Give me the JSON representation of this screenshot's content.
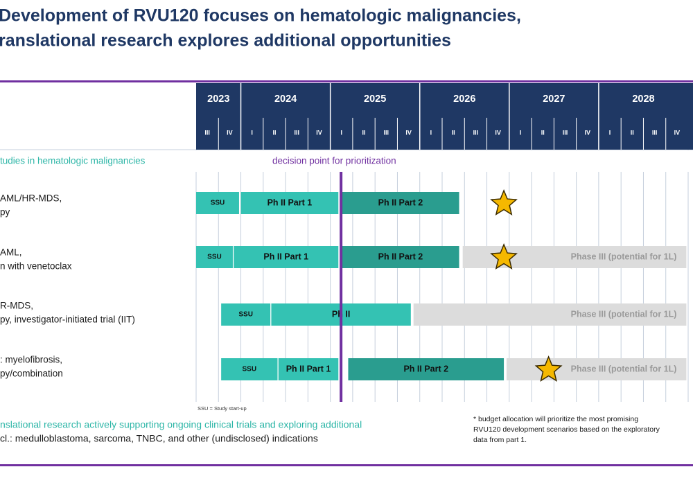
{
  "header": {
    "title": [
      "Development of RVU120 focuses on hematologic malignancies,",
      "ranslational research explores additional opportunities"
    ]
  },
  "timeline": {
    "years": [
      {
        "label": "2023",
        "quarters": [
          "III",
          "IV"
        ]
      },
      {
        "label": "2024",
        "quarters": [
          "I",
          "II",
          "III",
          "IV"
        ]
      },
      {
        "label": "2025",
        "quarters": [
          "I",
          "II",
          "III",
          "IV"
        ]
      },
      {
        "label": "2026",
        "quarters": [
          "I",
          "II",
          "III",
          "IV"
        ]
      },
      {
        "label": "2027",
        "quarters": [
          "I",
          "II",
          "III",
          "IV"
        ]
      },
      {
        "label": "2028",
        "quarters": [
          "I",
          "II",
          "III",
          "IV"
        ]
      }
    ]
  },
  "section": {
    "title": "tudies in hematologic malignancies",
    "decision_label": "decision point for prioritization",
    "decision_time": 2025.12
  },
  "rows": [
    {
      "label": [
        "AML/HR-MDS,",
        "py"
      ],
      "bars": [
        {
          "label": "SSU",
          "kind": "setup",
          "start": 2023.5,
          "end": 2023.98
        },
        {
          "label": "Ph II Part 1",
          "kind": "setup",
          "start": 2024.0,
          "end": 2025.09
        },
        {
          "label": "Ph II Part 2",
          "kind": "main",
          "start": 2025.13,
          "end": 2026.44
        }
      ],
      "star": 2026.94
    },
    {
      "label": [
        "AML,",
        "n with venetoclax"
      ],
      "bars": [
        {
          "label": "SSU",
          "kind": "setup",
          "start": 2023.5,
          "end": 2023.91
        },
        {
          "label": "Ph II Part 1",
          "kind": "setup",
          "start": 2023.92,
          "end": 2025.09
        },
        {
          "label": "Ph II Part 2",
          "kind": "main",
          "start": 2025.13,
          "end": 2026.44
        },
        {
          "label": "Phase III (potential for 1L)",
          "kind": "potential",
          "start": 2026.48,
          "end": 2028.98
        }
      ],
      "star": 2026.94
    },
    {
      "label": [
        "R-MDS,",
        "py, investigator-initiated trial (IIT)"
      ],
      "bars": [
        {
          "label": "SSU",
          "kind": "setup",
          "start": 2023.78,
          "end": 2024.33
        },
        {
          "label": "Ph II",
          "kind": "setup",
          "start": 2024.34,
          "end": 2025.9
        },
        {
          "label": "Phase III (potential for 1L)",
          "kind": "potential",
          "start": 2025.93,
          "end": 2028.98
        }
      ],
      "star": null
    },
    {
      "label": [
        ": myelofibrosis,",
        "py/combination"
      ],
      "bars": [
        {
          "label": "SSU",
          "kind": "setup",
          "start": 2023.78,
          "end": 2024.41
        },
        {
          "label": "Ph II Part 1",
          "kind": "setup",
          "start": 2024.42,
          "end": 2025.09
        },
        {
          "label": "Ph II Part 2",
          "kind": "main",
          "start": 2025.2,
          "end": 2026.94
        },
        {
          "label": "Phase III (potential for 1L)",
          "kind": "potential",
          "start": 2026.97,
          "end": 2028.98
        }
      ],
      "star": 2027.44
    }
  ],
  "footer": {
    "abbreviation": "SSU = Study start-up",
    "research": [
      "nslational research actively supporting ongoing clinical trials and exploring additional",
      "cl.: medulloblastoma, sarcoma, TNBC, and other (undisclosed) indications"
    ],
    "footnote": [
      "* budget allocation will prioritize the most promising",
      "RVU120 development scenarios based on the exploratory",
      "data from part 1."
    ]
  }
}
